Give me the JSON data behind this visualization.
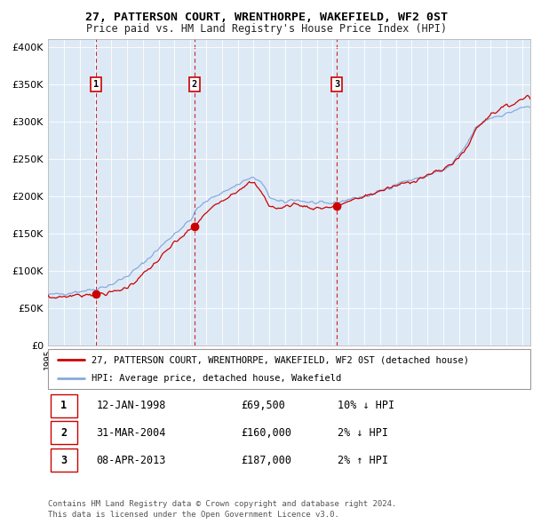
{
  "title1": "27, PATTERSON COURT, WRENTHORPE, WAKEFIELD, WF2 0ST",
  "title2": "Price paid vs. HM Land Registry's House Price Index (HPI)",
  "sales": [
    {
      "label": "1",
      "date_num": 1998.04,
      "price": 69500
    },
    {
      "label": "2",
      "date_num": 2004.25,
      "price": 160000
    },
    {
      "label": "3",
      "date_num": 2013.27,
      "price": 187000
    }
  ],
  "legend_line1": "27, PATTERSON COURT, WRENTHORPE, WAKEFIELD, WF2 0ST (detached house)",
  "legend_line2": "HPI: Average price, detached house, Wakefield",
  "table_rows": [
    [
      "1",
      "12-JAN-1998",
      "£69,500",
      "10% ↓ HPI"
    ],
    [
      "2",
      "31-MAR-2004",
      "£160,000",
      "2% ↓ HPI"
    ],
    [
      "3",
      "08-APR-2013",
      "£187,000",
      "2% ↑ HPI"
    ]
  ],
  "footer": "Contains HM Land Registry data © Crown copyright and database right 2024.\nThis data is licensed under the Open Government Licence v3.0.",
  "xmin": 1995.0,
  "xmax": 2025.5,
  "ymin": 0,
  "ymax": 410000,
  "bg_color": "#ddeaf6",
  "red_line_color": "#cc0000",
  "blue_line_color": "#88aadd",
  "marker_color": "#cc0000",
  "key_years_hpi": [
    1995.0,
    1996.0,
    1997.0,
    1997.5,
    1998.0,
    1999.0,
    2000.0,
    2001.0,
    2002.0,
    2003.0,
    2004.0,
    2004.5,
    2005.5,
    2006.5,
    2007.5,
    2008.0,
    2008.5,
    2009.0,
    2009.5,
    2010.0,
    2010.5,
    2011.0,
    2011.5,
    2012.0,
    2012.5,
    2013.0,
    2013.5,
    2014.0,
    2014.5,
    2015.0,
    2015.5,
    2016.0,
    2016.5,
    2017.0,
    2017.5,
    2018.0,
    2018.5,
    2019.0,
    2019.5,
    2020.0,
    2020.5,
    2021.0,
    2021.5,
    2022.0,
    2022.5,
    2023.0,
    2023.5,
    2024.0,
    2024.5,
    2025.3
  ],
  "key_vals_hpi": [
    68000,
    70000,
    73000,
    74500,
    76000,
    82000,
    93000,
    110000,
    130000,
    150000,
    168000,
    185000,
    200000,
    210000,
    222000,
    225000,
    218000,
    200000,
    193000,
    192000,
    196000,
    194000,
    192000,
    191000,
    190000,
    191000,
    193000,
    196000,
    198000,
    200000,
    202000,
    207000,
    211000,
    216000,
    220000,
    222000,
    224000,
    228000,
    232000,
    234000,
    242000,
    255000,
    270000,
    290000,
    300000,
    305000,
    308000,
    310000,
    315000,
    320000
  ],
  "key_years_red": [
    1995.0,
    1996.0,
    1997.0,
    1997.5,
    1998.04,
    1999.0,
    2000.0,
    2001.0,
    2002.0,
    2003.0,
    2004.0,
    2004.25,
    2005.0,
    2006.0,
    2007.0,
    2007.5,
    2008.0,
    2008.5,
    2009.0,
    2009.5,
    2010.0,
    2010.5,
    2011.0,
    2011.5,
    2012.0,
    2012.5,
    2013.0,
    2013.27,
    2013.5,
    2014.0,
    2014.5,
    2015.0,
    2016.0,
    2017.0,
    2018.0,
    2019.0,
    2020.0,
    2021.0,
    2021.5,
    2022.0,
    2022.5,
    2023.0,
    2023.5,
    2024.0,
    2025.0,
    2025.3
  ],
  "key_vals_red": [
    64000,
    66000,
    68000,
    69000,
    69500,
    71000,
    78000,
    95000,
    115000,
    138000,
    155000,
    160000,
    178000,
    195000,
    208000,
    216000,
    218000,
    205000,
    188000,
    183000,
    186000,
    190000,
    188000,
    185000,
    184000,
    185000,
    186000,
    187000,
    189000,
    193000,
    196000,
    200000,
    207000,
    214000,
    220000,
    228000,
    236000,
    252000,
    265000,
    288000,
    300000,
    310000,
    316000,
    320000,
    330000,
    335000
  ]
}
